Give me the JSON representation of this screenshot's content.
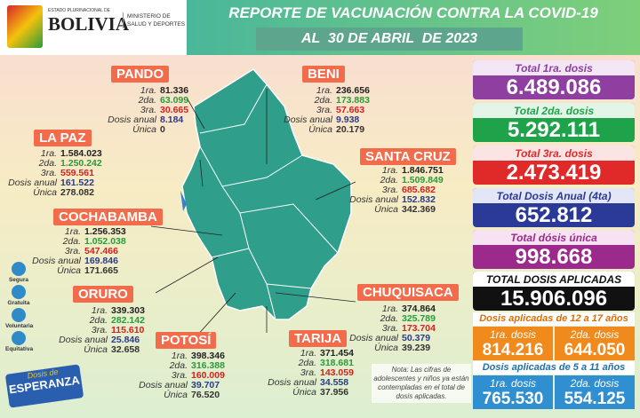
{
  "header": {
    "logo_line1": "ESTADO PLURINACIONAL DE",
    "logo_line2": "BOLIVIA",
    "ministry_line1": "MINISTERIO DE",
    "ministry_line2": "SALUD Y DEPORTES",
    "title": "REPORTE DE VACUNACIÓN CONTRA LA COVID-19",
    "date": "AL  30 DE ABRIL  DE 2023"
  },
  "departments": [
    {
      "name": "PANDO",
      "rows": [
        {
          "label": "1ra.",
          "value": "81.336"
        },
        {
          "label": "2da.",
          "value": "63.099"
        },
        {
          "label": "3ra.",
          "value": "30.665"
        },
        {
          "label": "Dosis anual",
          "value": "8.184"
        },
        {
          "label": "Única",
          "value": "0"
        }
      ]
    },
    {
      "name": "BENI",
      "rows": [
        {
          "label": "1ra.",
          "value": "236.656"
        },
        {
          "label": "2da.",
          "value": "173.883"
        },
        {
          "label": "3ra.",
          "value": "57.663"
        },
        {
          "label": "Dosis anual",
          "value": "9.938"
        },
        {
          "label": "Única",
          "value": "20.179"
        }
      ]
    },
    {
      "name": "LA PAZ",
      "rows": [
        {
          "label": "1ra.",
          "value": "1.584.023"
        },
        {
          "label": "2da.",
          "value": "1.250.242"
        },
        {
          "label": "3ra.",
          "value": "559.561"
        },
        {
          "label": "Dosis anual",
          "value": "161.522"
        },
        {
          "label": "Única",
          "value": "278.082"
        }
      ]
    },
    {
      "name": "SANTA CRUZ",
      "rows": [
        {
          "label": "1ra.",
          "value": "1.846.751"
        },
        {
          "label": "2da.",
          "value": "1.509.849"
        },
        {
          "label": "3ra.",
          "value": "685.682"
        },
        {
          "label": "Dosis anual",
          "value": "152.832"
        },
        {
          "label": "Única",
          "value": "342.369"
        }
      ]
    },
    {
      "name": "COCHABAMBA",
      "rows": [
        {
          "label": "1ra.",
          "value": "1.256.353"
        },
        {
          "label": "2da.",
          "value": "1.052.038"
        },
        {
          "label": "3ra.",
          "value": "547.466"
        },
        {
          "label": "Dosis anual",
          "value": "169.846"
        },
        {
          "label": "Única",
          "value": "171.665"
        }
      ]
    },
    {
      "name": "ORURO",
      "rows": [
        {
          "label": "1ra.",
          "value": "339.303"
        },
        {
          "label": "2da.",
          "value": "282.142"
        },
        {
          "label": "3ra.",
          "value": "115.610"
        },
        {
          "label": "Dosis anual",
          "value": "25.846"
        },
        {
          "label": "Única",
          "value": "32.658"
        }
      ]
    },
    {
      "name": "CHUQUISACA",
      "rows": [
        {
          "label": "1ra.",
          "value": "374.864"
        },
        {
          "label": "2da.",
          "value": "325.789"
        },
        {
          "label": "3ra.",
          "value": "173.704"
        },
        {
          "label": "Dosis anual",
          "value": "50.379"
        },
        {
          "label": "Única",
          "value": "39.239"
        }
      ]
    },
    {
      "name": "POTOSÍ",
      "rows": [
        {
          "label": "1ra.",
          "value": "398.346"
        },
        {
          "label": "2da.",
          "value": "316.388"
        },
        {
          "label": "3ra.",
          "value": "160.009"
        },
        {
          "label": "Dosis anual",
          "value": "39.707"
        },
        {
          "label": "Única",
          "value": "76.520"
        }
      ]
    },
    {
      "name": "TARIJA",
      "rows": [
        {
          "label": "1ra.",
          "value": "371.454"
        },
        {
          "label": "2da.",
          "value": "318.681"
        },
        {
          "label": "3ra.",
          "value": "143.059"
        },
        {
          "label": "Dosis anual",
          "value": "34.558"
        },
        {
          "label": "Única",
          "value": "37.956"
        }
      ]
    }
  ],
  "totals": [
    {
      "label": "Total 1ra. dosis",
      "value": "6.489.086"
    },
    {
      "label": "Total 2da. dosis",
      "value": "5.292.111"
    },
    {
      "label": "Total 3ra. dosis",
      "value": "2.473.419"
    },
    {
      "label": "Total Dosis Anual (4ta)",
      "value": "652.812"
    },
    {
      "label": "Total dósis única",
      "value": "998.668"
    },
    {
      "label": "TOTAL DOSIS APLICADAS",
      "value": "15.906.096"
    }
  ],
  "age_groups": [
    {
      "title": "Dosis aplicadas de 12 a 17 años",
      "items": [
        {
          "label": "1ra. dosis",
          "value": "814.216"
        },
        {
          "label": "2da. dosis",
          "value": "644.050"
        }
      ]
    },
    {
      "title": "Dosis aplicadas de 5 a 11 años",
      "items": [
        {
          "label": "1ra. dosis",
          "value": "765.530"
        },
        {
          "label": "2da. dosis",
          "value": "554.125"
        }
      ]
    }
  ],
  "note": "Nota: Las cifras de adolescentes y niños ya están contempladas en el total de dosis aplicadas.",
  "badges": [
    "Segura",
    "Gratuita",
    "Voluntaria",
    "Equitativa"
  ],
  "campaign": {
    "line1": "Dosis de",
    "line2": "ESPERANZA"
  }
}
